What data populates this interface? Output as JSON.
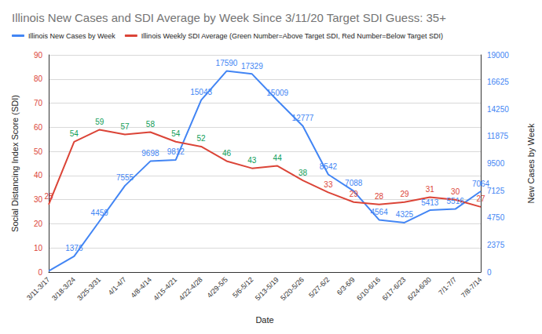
{
  "chart_data": {
    "type": "line",
    "title": "Illinois New Cases and SDI Average by Week Since 3/11/20 Target SDI Guess: 35+",
    "x_label": "Date",
    "y_label": "Social Distancing Index Score (SDI)",
    "y2_label": "New Cases by Week",
    "categories": [
      "3/11-3/17",
      "3/18-3/24",
      "3/25-3/31",
      "4/1-4/7",
      "4/8-4/14",
      "4/15-4/21",
      "4/22-4/28",
      "4/29-5/5",
      "5/6-5/12",
      "5/13-5/19",
      "5/20-5/26",
      "5/27-6/2",
      "6/3-6/9",
      "6/10-6/16",
      "6/17-6/23",
      "6/24-6/30",
      "7/1-7/7",
      "7/8-7/14"
    ],
    "series": [
      {
        "name": "Illinois New Cases by Week",
        "color": "#4285f4",
        "axis": "y2",
        "values": [
          90,
          1376,
          4459,
          7555,
          9698,
          9812,
          15043,
          17590,
          17329,
          15009,
          12777,
          8542,
          7088,
          4564,
          4325,
          5413,
          5516,
          7064
        ],
        "value_labels": [
          null,
          "1376",
          "4459",
          "7555",
          "9698",
          "9812",
          "15043",
          "17590",
          "17329",
          "15009",
          "12777",
          "8542",
          "7088",
          "4564",
          "4325",
          "5413",
          "5516",
          "7064"
        ]
      },
      {
        "name": "Illinois Weekly SDI Average (Green Number=Above Target SDI, Red Number=Below Target SDI)",
        "color": "#db4437",
        "axis": "y",
        "values": [
          28,
          54,
          59,
          57,
          58,
          54,
          52,
          46,
          43,
          44,
          38,
          33,
          29,
          28,
          29,
          31,
          30,
          27
        ],
        "colors": [
          "#db4437",
          "#0f9d58",
          "#0f9d58",
          "#0f9d58",
          "#0f9d58",
          "#0f9d58",
          "#0f9d58",
          "#0f9d58",
          "#0f9d58",
          "#0f9d58",
          "#0f9d58",
          "#db4437",
          "#db4437",
          "#db4437",
          "#db4437",
          "#db4437",
          "#db4437",
          "#db4437"
        ]
      }
    ],
    "ylim": [
      0,
      90
    ],
    "yticks": [
      0,
      10,
      20,
      30,
      40,
      50,
      60,
      70,
      80,
      90
    ],
    "y2lim": [
      0,
      19000
    ],
    "y2ticks": [
      0,
      2375,
      4750,
      7125,
      9500,
      11875,
      14250,
      16625,
      19000
    ],
    "grid": true,
    "legend": "top-left",
    "data_labels": true
  }
}
